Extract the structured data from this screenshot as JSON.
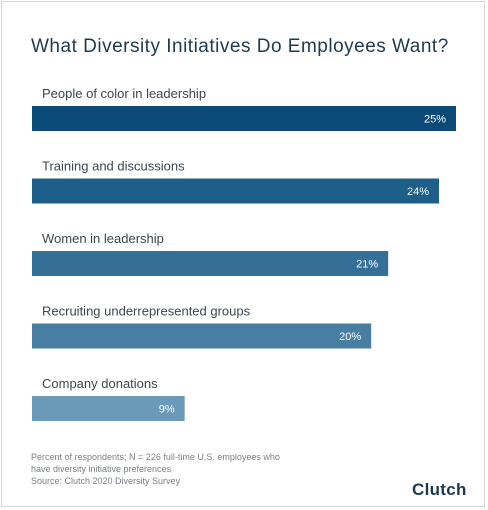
{
  "chart_data": {
    "type": "bar",
    "orientation": "horizontal",
    "title": "What Diversity Initiatives Do Employees Want?",
    "categories": [
      "People of color in leadership",
      "Training and discussions",
      "Women in leadership",
      "Recruiting underrepresented groups",
      "Company donations"
    ],
    "values": [
      25,
      24,
      21,
      20,
      9
    ],
    "value_labels": [
      "25%",
      "24%",
      "21%",
      "20%",
      "9%"
    ],
    "unit": "%",
    "xlim": [
      0,
      25
    ],
    "grid": false,
    "bar_colors": [
      "#0b4a78",
      "#1e5f89",
      "#346f97",
      "#477ea2",
      "#6b9ab8"
    ]
  },
  "footnote": {
    "line1": "Percent of respondents; N = 226 full-time U.S. employees who",
    "line2": "have diversity initiative preferences",
    "line3": "Source: Clutch 2020 Diversity Survey"
  },
  "logo": {
    "text": "Clutch",
    "accent_color": "#ff3d2e"
  }
}
